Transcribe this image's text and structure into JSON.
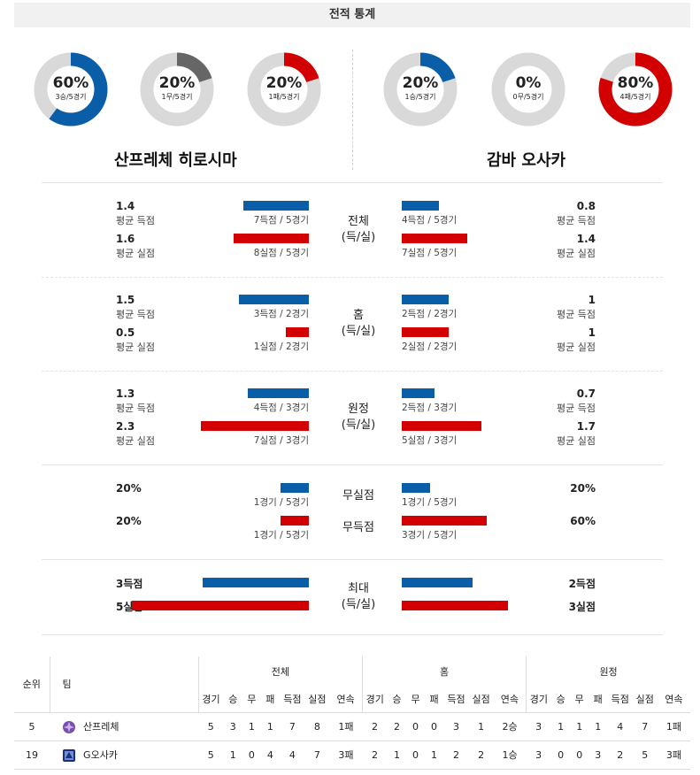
{
  "header": {
    "title": "전적 통계"
  },
  "colors": {
    "blue": "#0a5ea8",
    "red": "#d20000",
    "gray": "#666666",
    "track": "#d9d9d9"
  },
  "donuts": [
    {
      "pct": "60%",
      "sub": "3승/5경기",
      "value": 60,
      "color": "blue"
    },
    {
      "pct": "20%",
      "sub": "1무/5경기",
      "value": 20,
      "color": "gray"
    },
    {
      "pct": "20%",
      "sub": "1패/5경기",
      "value": 20,
      "color": "red"
    },
    {
      "pct": "20%",
      "sub": "1승/5경기",
      "value": 20,
      "color": "blue"
    },
    {
      "pct": "0%",
      "sub": "0무/5경기",
      "value": 0,
      "color": "gray"
    },
    {
      "pct": "80%",
      "sub": "4패/5경기",
      "value": 80,
      "color": "red"
    }
  ],
  "teams": {
    "home": "산프레체 히로시마",
    "away": "감바 오사카"
  },
  "sections": [
    {
      "label1": "전체",
      "label2": "(득/실)",
      "left": [
        {
          "value": "1.4",
          "label": "평균 득점",
          "caption": "7득점 / 5경기",
          "bar": 1.4
        },
        {
          "value": "1.6",
          "label": "평균 실점",
          "caption": "8실점 / 5경기",
          "bar": 1.6
        }
      ],
      "right": [
        {
          "value": "0.8",
          "label": "평균 득점",
          "caption": "4득점 / 5경기",
          "bar": 0.8
        },
        {
          "value": "1.4",
          "label": "평균 실점",
          "caption": "7실점 / 5경기",
          "bar": 1.4
        }
      ]
    },
    {
      "label1": "홈",
      "label2": "(득/실)",
      "left": [
        {
          "value": "1.5",
          "label": "평균 득점",
          "caption": "3득점 / 2경기",
          "bar": 1.5
        },
        {
          "value": "0.5",
          "label": "평균 실점",
          "caption": "1실점 / 2경기",
          "bar": 0.5
        }
      ],
      "right": [
        {
          "value": "1",
          "label": "평균 득점",
          "caption": "2득점 / 2경기",
          "bar": 1
        },
        {
          "value": "1",
          "label": "평균 실점",
          "caption": "2실점 / 2경기",
          "bar": 1
        }
      ]
    },
    {
      "label1": "원정",
      "label2": "(득/실)",
      "left": [
        {
          "value": "1.3",
          "label": "평균 득점",
          "caption": "4득점 / 3경기",
          "bar": 1.3
        },
        {
          "value": "2.3",
          "label": "평균 실점",
          "caption": "7실점 / 3경기",
          "bar": 2.3
        }
      ],
      "right": [
        {
          "value": "0.7",
          "label": "평균 득점",
          "caption": "2득점 / 3경기",
          "bar": 0.7
        },
        {
          "value": "1.7",
          "label": "평균 실점",
          "caption": "5실점 / 3경기",
          "bar": 1.7
        }
      ]
    }
  ],
  "clean": {
    "rows": [
      {
        "label": "무실점",
        "left_value": "20%",
        "left_caption": "1경기 / 5경기",
        "left_bar": 20,
        "right_value": "20%",
        "right_caption": "1경기 / 5경기",
        "right_bar": 20
      },
      {
        "label": "무득점",
        "left_value": "20%",
        "left_caption": "1경기 / 5경기",
        "left_bar": 20,
        "right_value": "60%",
        "right_caption": "3경기 / 5경기",
        "right_bar": 60
      }
    ]
  },
  "max": {
    "label1": "최대",
    "label2": "(득/실)",
    "left": [
      {
        "value": "3득점",
        "bar": 3
      },
      {
        "value": "5실점",
        "bar": 5
      }
    ],
    "right": [
      {
        "value": "2득점",
        "bar": 2
      },
      {
        "value": "3실점",
        "bar": 3
      }
    ]
  },
  "standings": {
    "col_rank": "순위",
    "col_team": "팀",
    "groups": [
      "전체",
      "홈",
      "원정"
    ],
    "sub": [
      "경기",
      "승",
      "무",
      "패",
      "득점",
      "실점",
      "연속"
    ],
    "rows": [
      {
        "rank": "5",
        "team": "산프레체",
        "emblem": "sanfrecce-emblem",
        "all": [
          "5",
          "3",
          "1",
          "1",
          "7",
          "8",
          "1패"
        ],
        "home": [
          "2",
          "2",
          "0",
          "0",
          "3",
          "1",
          "2승"
        ],
        "away": [
          "3",
          "1",
          "1",
          "1",
          "4",
          "7",
          "1패"
        ]
      },
      {
        "rank": "19",
        "team": "G오사카",
        "emblem": "gamba-emblem",
        "all": [
          "5",
          "1",
          "0",
          "4",
          "4",
          "7",
          "3패"
        ],
        "home": [
          "2",
          "1",
          "0",
          "1",
          "2",
          "2",
          "1승"
        ],
        "away": [
          "3",
          "0",
          "0",
          "3",
          "2",
          "5",
          "3패"
        ]
      }
    ]
  }
}
